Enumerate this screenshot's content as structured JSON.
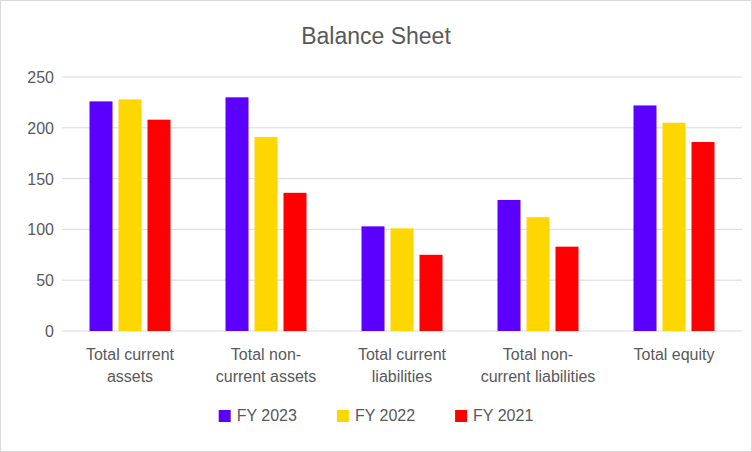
{
  "chart_data": {
    "type": "bar",
    "title": "Balance Sheet",
    "categories": [
      "Total current assets",
      "Total non-current assets",
      "Total current liabilities",
      "Total non-current liabilities",
      "Total equity"
    ],
    "series": [
      {
        "name": "FY 2023",
        "color": "#5b00ff",
        "values": [
          226,
          230,
          103,
          129,
          222
        ]
      },
      {
        "name": "FY 2022",
        "color": "#ffd700",
        "values": [
          228,
          191,
          101,
          112,
          205
        ]
      },
      {
        "name": "FY 2021",
        "color": "#ff0000",
        "values": [
          208,
          136,
          75,
          83,
          186
        ]
      }
    ],
    "ylim": [
      0,
      250
    ],
    "yticks": [
      0,
      50,
      100,
      150,
      200,
      250
    ],
    "grid": true,
    "legend": "bottom"
  }
}
